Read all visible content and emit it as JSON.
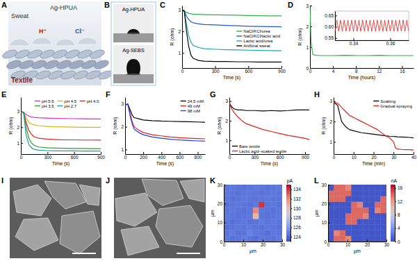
{
  "figure_panels": [
    {
      "title": "A",
      "labels": [
        "Sweat",
        "Ag-HPUA",
        "H⁺",
        "Cl⁻",
        "Textile"
      ]
    },
    {
      "title": "B",
      "labels": [
        "Ag-HPUA",
        "Ag-SEBS"
      ]
    },
    {
      "title": "I"
    },
    {
      "title": "J"
    }
  ],
  "chart_data": [
    {
      "type": "line",
      "title": "C",
      "xlabel": "Time (s)",
      "ylabel": "R (ohm)",
      "xlim": [
        0,
        900
      ],
      "ylim": [
        0.3,
        3.2
      ],
      "xticks": [
        0,
        300,
        600,
        900
      ],
      "yticks": [
        1,
        2,
        3
      ],
      "legend": "center right",
      "x": [
        0,
        20,
        40,
        60,
        80,
        100,
        150,
        200,
        300,
        400,
        500,
        600,
        700,
        800,
        900
      ],
      "series": [
        {
          "name": "NaCl/KCl/urea",
          "color": "#2db34a",
          "values": [
            2.95,
            2.95,
            2.88,
            2.84,
            2.82,
            2.8,
            2.79,
            2.78,
            2.77,
            2.76,
            2.75,
            2.74,
            2.73,
            2.72,
            2.72
          ]
        },
        {
          "name": "NaCl/KCl/lactic acid",
          "color": "#1f5bd6",
          "values": [
            2.95,
            2.95,
            2.7,
            2.55,
            2.45,
            2.4,
            2.35,
            2.32,
            2.3,
            2.28,
            2.26,
            2.24,
            2.23,
            2.22,
            2.21
          ]
        },
        {
          "name": "Lactic acid/urea",
          "color": "#17a9b8",
          "values": [
            2.95,
            2.95,
            2.3,
            1.8,
            1.5,
            1.35,
            1.25,
            1.2,
            1.17,
            1.15,
            1.14,
            1.13,
            1.12,
            1.11,
            1.1
          ]
        },
        {
          "name": "Artificial sweat",
          "color": "#000000",
          "values": [
            2.95,
            2.95,
            2.0,
            1.3,
            0.9,
            0.75,
            0.65,
            0.62,
            0.6,
            0.6,
            0.59,
            0.59,
            0.58,
            0.58,
            0.58
          ]
        }
      ]
    },
    {
      "type": "line",
      "title": "D",
      "xlabel": "Time (hours)",
      "ylabel": "R (ohm)",
      "xlim": [
        0,
        18
      ],
      "ylim": [
        0,
        3
      ],
      "xticks": [
        0,
        4,
        8,
        12,
        16
      ],
      "yticks": [
        0,
        1,
        2,
        3
      ],
      "x": [
        0,
        0.2,
        0.5,
        1,
        2,
        4,
        6,
        8,
        10,
        12,
        14,
        16,
        18
      ],
      "series": [
        {
          "color": "#2db34a",
          "values": [
            2.9,
            1.2,
            0.65,
            0.61,
            0.6,
            0.6,
            0.61,
            0.6,
            0.6,
            0.61,
            0.6,
            0.6,
            0.6
          ]
        }
      ],
      "inset": {
        "type": "line",
        "xlim": [
          0.33,
          0.37
        ],
        "ylim": [
          0.54,
          0.67
        ],
        "xticks": [
          0.34,
          0.36
        ],
        "yticks": [
          {
            "value": 0.55,
            "label": "0.55"
          },
          {
            "value": 0.6,
            "label": "0.60"
          },
          {
            "value": 0.65,
            "label": "0.65"
          }
        ],
        "x": [
          0.33,
          0.331,
          0.332,
          0.333,
          0.334,
          0.335,
          0.336,
          0.337,
          0.338,
          0.339,
          0.34,
          0.341,
          0.342,
          0.343,
          0.344,
          0.345,
          0.346,
          0.347,
          0.348,
          0.349,
          0.35,
          0.351,
          0.352,
          0.353,
          0.354,
          0.355,
          0.356,
          0.357,
          0.358,
          0.359,
          0.36,
          0.361,
          0.362,
          0.363,
          0.364,
          0.365,
          0.366,
          0.367,
          0.368,
          0.369,
          0.37
        ],
        "series": [
          {
            "color": "#e0201a",
            "values": [
              0.58,
              0.63,
              0.58,
              0.63,
              0.58,
              0.63,
              0.58,
              0.63,
              0.58,
              0.63,
              0.58,
              0.63,
              0.58,
              0.63,
              0.58,
              0.63,
              0.58,
              0.63,
              0.58,
              0.63,
              0.58,
              0.63,
              0.58,
              0.63,
              0.58,
              0.63,
              0.58,
              0.63,
              0.58,
              0.63,
              0.58,
              0.63,
              0.58,
              0.63,
              0.58,
              0.63,
              0.58,
              0.63,
              0.58,
              0.63,
              0.58
            ]
          }
        ]
      }
    },
    {
      "type": "line",
      "title": "E",
      "xlabel": "Time (s)",
      "ylabel": "R (ohm)",
      "xlim": [
        0,
        900
      ],
      "ylim": [
        0.3,
        3.9
      ],
      "xticks": [
        0,
        300,
        600,
        900
      ],
      "yticks": [
        1,
        2,
        3
      ],
      "legend": "upper right",
      "x": [
        0,
        30,
        60,
        90,
        120,
        150,
        200,
        300,
        400,
        500,
        600,
        700,
        800,
        900
      ],
      "series": [
        {
          "name": "pH 5.5",
          "color": "#e020e0",
          "values": [
            2.95,
            2.95,
            2.8,
            2.7,
            2.65,
            2.62,
            2.6,
            2.58,
            2.56,
            2.55,
            2.54,
            2.53,
            2.52,
            2.52
          ]
        },
        {
          "name": "pH 4.5",
          "color": "#d9b310",
          "values": [
            2.95,
            2.95,
            2.6,
            2.3,
            2.2,
            2.15,
            2.1,
            2.05,
            2.03,
            2.02,
            2.01,
            2.0,
            2.0,
            2.0
          ]
        },
        {
          "name": "pH 4.0",
          "color": "#e0201a",
          "values": [
            2.95,
            2.95,
            2.3,
            1.8,
            1.55,
            1.4,
            1.3,
            1.25,
            1.22,
            1.2,
            1.2,
            1.19,
            1.19,
            1.18
          ]
        },
        {
          "name": "pH 3.5",
          "color": "#2ca02c",
          "values": [
            2.95,
            2.95,
            2.0,
            1.3,
            1.0,
            0.85,
            0.75,
            0.7,
            0.68,
            0.67,
            0.66,
            0.66,
            0.65,
            0.65
          ]
        },
        {
          "name": "pH 2.7",
          "color": "#1a9aa8",
          "values": [
            2.95,
            2.95,
            1.5,
            0.9,
            0.7,
            0.6,
            0.55,
            0.52,
            0.5,
            0.5,
            0.5,
            0.49,
            0.49,
            0.49
          ]
        }
      ]
    },
    {
      "type": "line",
      "title": "F",
      "xlabel": "Time (s)",
      "ylabel": "R (ohm)",
      "xlim": [
        0,
        880
      ],
      "ylim": [
        0.8,
        3.3
      ],
      "xticks": [
        0,
        200,
        400,
        600,
        800
      ],
      "yticks": [
        1,
        2,
        3
      ],
      "legend": "upper right",
      "x": [
        0,
        30,
        60,
        80,
        100,
        150,
        200,
        300,
        400,
        500,
        600,
        700,
        800,
        880
      ],
      "series": [
        {
          "name": "24.5 mM",
          "color": "#000000",
          "values": [
            2.95,
            3.0,
            2.7,
            2.5,
            2.4,
            2.35,
            2.3,
            2.27,
            2.25,
            2.24,
            2.23,
            2.22,
            2.21,
            2.2
          ]
        },
        {
          "name": "49 mM",
          "color": "#e0201a",
          "values": [
            2.95,
            3.0,
            2.5,
            2.2,
            2.0,
            1.85,
            1.75,
            1.65,
            1.6,
            1.55,
            1.52,
            1.5,
            1.48,
            1.47
          ]
        },
        {
          "name": "98 mM",
          "color": "#1f3fd6",
          "values": [
            2.95,
            3.0,
            2.4,
            2.1,
            1.9,
            1.75,
            1.65,
            1.55,
            1.5,
            1.45,
            1.42,
            1.4,
            1.38,
            1.37
          ]
        }
      ]
    },
    {
      "type": "line",
      "title": "G",
      "xlabel": "Time (s)",
      "ylabel": "R (ohm)",
      "xlim": [
        0,
        950
      ],
      "ylim": [
        0.3,
        3.2
      ],
      "xticks": [
        0,
        300,
        600,
        900
      ],
      "yticks": [
        1,
        2,
        3
      ],
      "legend": "lower left",
      "x": [
        0,
        30,
        60,
        100,
        150,
        200,
        300,
        400,
        500,
        600,
        700,
        800,
        900,
        950
      ],
      "series": [
        {
          "name": "Bare textile",
          "color": "#000000",
          "values": [
            2.9,
            2.7,
            2.6,
            2.55,
            2.55,
            2.52,
            2.52,
            2.5,
            2.52,
            2.5,
            2.52,
            2.55,
            2.55,
            2.55
          ]
        },
        {
          "name": "Lactic acid–soaked textile",
          "color": "#e0201a",
          "values": [
            2.9,
            2.6,
            2.4,
            2.2,
            2.0,
            1.85,
            1.7,
            1.55,
            1.45,
            1.35,
            1.25,
            1.18,
            1.1,
            1.05
          ]
        }
      ]
    },
    {
      "type": "line",
      "title": "H",
      "xlabel": "Time (min)",
      "ylabel": "R (ohm)",
      "xlim": [
        0,
        40
      ],
      "ylim": [
        0.4,
        3.2
      ],
      "xticks": [
        0,
        10,
        20,
        30,
        40
      ],
      "yticks": [
        1,
        2,
        3
      ],
      "legend": "upper right",
      "x": [
        0,
        2,
        4,
        6,
        8,
        10,
        14,
        18,
        22,
        26,
        28,
        30,
        31,
        32,
        34,
        36,
        38,
        40
      ],
      "series": [
        {
          "name": "Soaking",
          "color": "#000000",
          "values": [
            2.95,
            2.8,
            2.0,
            1.75,
            1.6,
            1.55,
            1.45,
            1.4,
            1.35,
            1.3,
            1.28,
            1.27,
            1.26,
            1.25,
            1.24,
            1.23,
            1.22,
            1.2
          ]
        },
        {
          "name": "Gradual spraying",
          "color": "#e0201a",
          "values": [
            2.95,
            2.9,
            2.7,
            2.5,
            2.3,
            2.2,
            2.0,
            1.8,
            1.6,
            1.3,
            1.2,
            1.0,
            0.7,
            0.65,
            0.63,
            0.62,
            0.62,
            0.6
          ]
        }
      ]
    },
    {
      "type": "heatmap",
      "title": "K",
      "xlabel": "µm",
      "ylabel": "µm",
      "xlim": [
        0,
        30
      ],
      "ylim": [
        0,
        30
      ],
      "xticks": [
        0,
        10,
        20,
        30
      ],
      "yticks": [
        0,
        10,
        20,
        30
      ],
      "x": [
        1.5,
        4.5,
        7.5,
        10.5,
        13.5,
        16.5,
        19.5,
        22.5,
        25.5,
        28.5
      ],
      "y": [
        1.5,
        4.5,
        7.5,
        10.5,
        13.5,
        16.5,
        19.5,
        22.5,
        25.5,
        28.5
      ],
      "z": [
        [
          124.6,
          124.4,
          124.5,
          124.8,
          124.5,
          124.3,
          124.6,
          124.5,
          124.4,
          124.7
        ],
        [
          124.5,
          124.7,
          124.4,
          124.5,
          125.0,
          124.6,
          124.5,
          124.3,
          124.6,
          124.5
        ],
        [
          124.4,
          124.5,
          124.6,
          124.5,
          124.7,
          124.5,
          124.4,
          124.6,
          124.5,
          124.4
        ],
        [
          124.5,
          124.3,
          124.5,
          124.6,
          124.4,
          124.5,
          124.8,
          124.5,
          124.6,
          124.5
        ],
        [
          124.6,
          124.5,
          124.4,
          124.5,
          124.6,
          130.5,
          124.5,
          124.4,
          124.5,
          124.6
        ],
        [
          124.5,
          124.6,
          124.5,
          124.4,
          124.5,
          132.0,
          124.6,
          124.5,
          124.4,
          124.5
        ],
        [
          124.4,
          124.5,
          124.6,
          124.5,
          124.4,
          124.6,
          134.0,
          124.5,
          124.6,
          124.4
        ],
        [
          124.5,
          124.4,
          124.5,
          124.6,
          124.5,
          124.4,
          124.5,
          124.6,
          124.5,
          124.5
        ],
        [
          124.6,
          124.5,
          124.4,
          124.5,
          124.6,
          124.5,
          124.4,
          124.5,
          124.6,
          124.5
        ],
        [
          124.5,
          124.6,
          124.5,
          124.4,
          124.5,
          124.6,
          124.5,
          124.4,
          124.5,
          124.6
        ]
      ],
      "colorbar_range": [
        123,
        135
      ],
      "colorbar_ticks": [
        124,
        126,
        128,
        130,
        132,
        134
      ],
      "colorbar_label": "pA"
    },
    {
      "type": "heatmap",
      "title": "L",
      "xlabel": "µm",
      "ylabel": "µm",
      "xlim": [
        0,
        30
      ],
      "ylim": [
        0,
        30
      ],
      "xticks": [
        0,
        10,
        20,
        30
      ],
      "yticks": [
        0,
        10,
        20,
        30
      ],
      "x": [
        1.5,
        4.5,
        7.5,
        10.5,
        13.5,
        16.5,
        19.5,
        22.5,
        25.5,
        28.5
      ],
      "y": [
        1.5,
        4.5,
        7.5,
        10.5,
        13.5,
        16.5,
        19.5,
        22.5,
        25.5,
        28.5
      ],
      "z": [
        [
          0.5,
          14,
          14,
          13,
          0.5,
          0.5,
          0.5,
          0.5,
          0.5,
          0.5
        ],
        [
          0.5,
          13,
          14,
          0.5,
          0.5,
          0.5,
          0.5,
          0.5,
          0.5,
          0.5
        ],
        [
          0.5,
          0.5,
          0.5,
          0.5,
          0.5,
          0.5,
          0.5,
          0.5,
          0.5,
          0.5
        ],
        [
          0.5,
          0.5,
          0.5,
          14,
          14,
          0.5,
          0.5,
          0.5,
          0.5,
          0.5
        ],
        [
          0.5,
          0.5,
          0.5,
          14,
          14,
          14,
          13,
          0.5,
          0.5,
          0.5
        ],
        [
          0.5,
          0.5,
          0.5,
          0.5,
          14,
          14,
          14,
          0.5,
          13,
          14
        ],
        [
          0.5,
          0.5,
          0.5,
          0.5,
          14,
          13,
          0.5,
          0.5,
          14,
          14
        ],
        [
          14,
          14,
          14,
          0.5,
          0.5,
          0.5,
          0.5,
          0.5,
          0.5,
          14
        ],
        [
          14,
          14,
          14,
          14,
          0.5,
          0.5,
          0.5,
          0.5,
          0.5,
          0.5
        ],
        [
          0.5,
          14,
          14,
          13,
          0.5,
          0.5,
          0.5,
          0.5,
          0.5,
          0.5
        ]
      ],
      "colorbar_range": [
        0,
        17
      ],
      "colorbar_ticks": [
        0,
        4,
        8,
        12,
        16
      ],
      "colorbar_label": "nA"
    }
  ]
}
